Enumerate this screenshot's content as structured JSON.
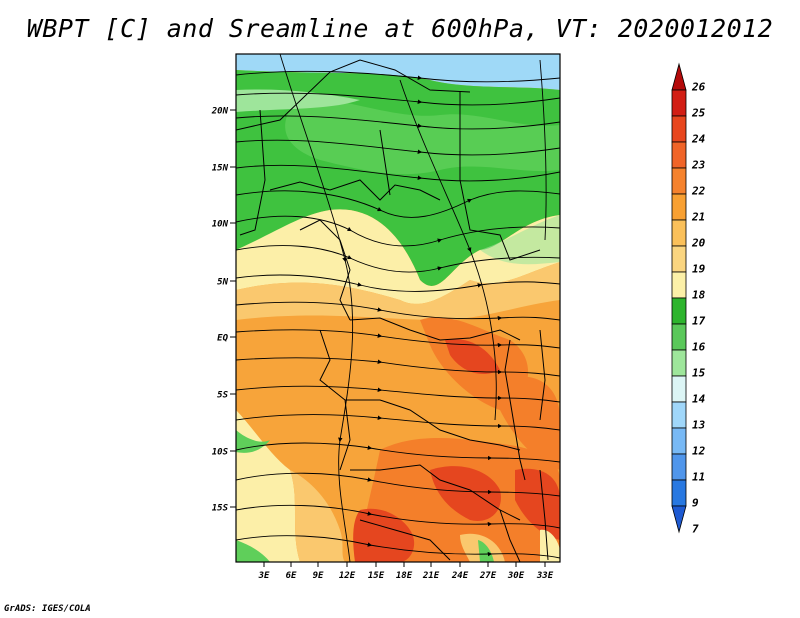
{
  "title": "WBPT [C] and Sreamline at 600hPa, VT: 2020012012",
  "footer": "GrADS: IGES/COLA",
  "map": {
    "lat_labels": [
      "20N",
      "15N",
      "10N",
      "5N",
      "EQ",
      "5S",
      "10S",
      "15S"
    ],
    "lon_labels": [
      "3E",
      "6E",
      "9E",
      "12E",
      "15E",
      "18E",
      "21E",
      "24E",
      "27E",
      "30E",
      "33E"
    ],
    "field_description_colors": {
      "cool": "#9fd9f7",
      "green_dark": "#3fc23f",
      "green_light": "#9ee59b",
      "yellow": "#fcefa8",
      "orange_light": "#fac86e",
      "orange": "#f7a43a",
      "orange_dark": "#f47f2a",
      "red": "#e5461f"
    }
  },
  "colorbar": {
    "labels": [
      "26",
      "25",
      "24",
      "23",
      "22",
      "21",
      "20",
      "19",
      "18",
      "17",
      "16",
      "15",
      "14",
      "13",
      "12",
      "11",
      "9",
      "7"
    ],
    "colors": [
      "#b40a0a",
      "#d21e14",
      "#e8461e",
      "#f06428",
      "#f5822d",
      "#f8a032",
      "#fac05a",
      "#fad580",
      "#fcf0a8",
      "#2db42d",
      "#5ac85a",
      "#9ee69b",
      "#dcf5f5",
      "#a0d7fa",
      "#78b9f5",
      "#5096eb",
      "#2878e1",
      "#1e5ad2"
    ]
  }
}
